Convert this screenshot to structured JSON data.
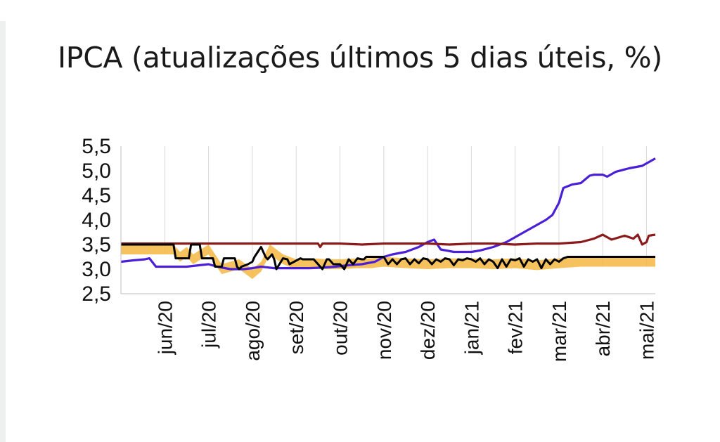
{
  "chart_data": {
    "type": "line",
    "title": "IPCA (atualizações últimos 5 dias úteis, %)",
    "xlabel": "",
    "ylabel": "",
    "y_ticks": [
      "5,5",
      "5,0",
      "4,5",
      "4,0",
      "3,5",
      "3,0",
      "2,5"
    ],
    "ylim": [
      2.5,
      5.5
    ],
    "x_ticks": [
      "jun/20",
      "jul/20",
      "ago/20",
      "set/20",
      "out/20",
      "nov/20",
      "dez/20",
      "jan/21",
      "fev/21",
      "mar/21",
      "abr/21",
      "mai/21"
    ],
    "x_tick_positions": [
      1,
      2,
      3,
      4,
      5,
      6,
      7,
      8,
      9,
      10,
      11,
      12
    ],
    "xlim": [
      0.0,
      12.2
    ],
    "grid": "vertical",
    "legend": "none",
    "series": [
      {
        "color": "#f5b742",
        "style": "area",
        "x": [
          0.0,
          1.2,
          1.35,
          1.5,
          1.65,
          2.0,
          2.3,
          2.7,
          3.0,
          3.2,
          3.4,
          3.7,
          4.0,
          4.4,
          4.7,
          5.0,
          5.4,
          5.7,
          6.0,
          6.5,
          7.0,
          7.5,
          8.0,
          8.5,
          9.0,
          9.5,
          10.0,
          10.5,
          11.0,
          11.5,
          12.2
        ],
        "values": [
          3.5,
          3.5,
          3.35,
          3.45,
          3.3,
          3.5,
          3.1,
          3.2,
          3.0,
          3.15,
          3.5,
          3.3,
          3.2,
          3.22,
          3.2,
          3.2,
          3.22,
          3.22,
          3.25,
          3.22,
          3.2,
          3.22,
          3.22,
          3.2,
          3.22,
          3.18,
          3.22,
          3.25,
          3.25,
          3.25,
          3.25
        ]
      },
      {
        "color": "#4a1fd6",
        "style": "line",
        "x": [
          0.0,
          0.3,
          0.55,
          0.65,
          0.8,
          1.0,
          1.3,
          1.5,
          1.8,
          2.0,
          2.2,
          2.5,
          2.8,
          3.0,
          3.2,
          3.5,
          3.8,
          4.0,
          4.3,
          4.6,
          4.9,
          5.2,
          5.5,
          5.8,
          6.0,
          6.2,
          6.5,
          6.8,
          7.0,
          7.15,
          7.3,
          7.6,
          7.9,
          8.0,
          8.2,
          8.5,
          8.8,
          9.0,
          9.2,
          9.5,
          9.7,
          9.85,
          10.0,
          10.1,
          10.3,
          10.5,
          10.7,
          10.8,
          11.0,
          11.1,
          11.3,
          11.6,
          11.9,
          12.2
        ],
        "values": [
          3.15,
          3.18,
          3.2,
          3.22,
          3.05,
          3.05,
          3.05,
          3.05,
          3.08,
          3.1,
          3.05,
          3.0,
          3.0,
          3.02,
          3.05,
          3.02,
          3.02,
          3.02,
          3.02,
          3.03,
          3.05,
          3.08,
          3.1,
          3.15,
          3.25,
          3.3,
          3.35,
          3.45,
          3.55,
          3.6,
          3.4,
          3.35,
          3.35,
          3.35,
          3.38,
          3.45,
          3.55,
          3.65,
          3.75,
          3.9,
          4.0,
          4.1,
          4.35,
          4.65,
          4.72,
          4.75,
          4.9,
          4.92,
          4.92,
          4.88,
          4.98,
          5.05,
          5.1,
          5.25
        ]
      },
      {
        "color": "#8b1a1a",
        "style": "line",
        "x": [
          0.0,
          1.0,
          2.0,
          3.0,
          4.0,
          4.5,
          4.55,
          4.6,
          5.0,
          5.5,
          6.0,
          7.0,
          7.5,
          8.0,
          8.5,
          9.0,
          9.5,
          10.0,
          10.5,
          10.8,
          11.0,
          11.2,
          11.5,
          11.7,
          11.8,
          11.9,
          12.0,
          12.05,
          12.2
        ],
        "values": [
          3.52,
          3.52,
          3.52,
          3.52,
          3.52,
          3.52,
          3.45,
          3.52,
          3.52,
          3.5,
          3.52,
          3.52,
          3.5,
          3.52,
          3.52,
          3.5,
          3.52,
          3.52,
          3.55,
          3.62,
          3.7,
          3.6,
          3.68,
          3.62,
          3.7,
          3.5,
          3.55,
          3.68,
          3.7
        ]
      },
      {
        "color": "#000000",
        "style": "line",
        "x": [
          0.0,
          1.1,
          1.2,
          1.25,
          1.55,
          1.6,
          1.65,
          1.8,
          1.85,
          2.1,
          2.15,
          2.3,
          2.35,
          2.6,
          2.65,
          2.7,
          2.75,
          2.9,
          3.0,
          3.05,
          3.2,
          3.3,
          3.35,
          3.45,
          3.5,
          3.55,
          3.7,
          3.8,
          3.85,
          4.1,
          4.15,
          4.3,
          4.4,
          4.6,
          4.7,
          4.75,
          4.85,
          5.0,
          5.1,
          5.2,
          5.3,
          5.4,
          5.5,
          5.55,
          5.6,
          5.8,
          6.0,
          6.1,
          6.2,
          6.3,
          6.4,
          6.5,
          6.6,
          6.7,
          6.8,
          6.9,
          7.0,
          7.1,
          7.2,
          7.3,
          7.4,
          7.5,
          7.6,
          7.7,
          7.8,
          7.9,
          8.0,
          8.1,
          8.2,
          8.3,
          8.4,
          8.5,
          8.6,
          8.7,
          8.8,
          8.9,
          9.0,
          9.1,
          9.2,
          9.3,
          9.4,
          9.5,
          9.6,
          9.7,
          9.8,
          9.9,
          10.0,
          10.1,
          10.2,
          10.3,
          10.5,
          11.0,
          11.5,
          12.2
        ],
        "values": [
          3.5,
          3.5,
          3.5,
          3.22,
          3.22,
          3.5,
          3.5,
          3.5,
          3.22,
          3.22,
          3.05,
          3.05,
          3.22,
          3.22,
          3.05,
          3.0,
          3.05,
          3.1,
          3.15,
          3.25,
          3.45,
          3.25,
          3.2,
          3.3,
          3.2,
          3.0,
          3.22,
          3.2,
          3.1,
          3.22,
          3.2,
          3.2,
          3.2,
          3.0,
          3.2,
          3.2,
          3.1,
          3.1,
          3.0,
          3.2,
          3.1,
          3.22,
          3.2,
          3.2,
          3.25,
          3.25,
          3.25,
          3.1,
          3.2,
          3.1,
          3.2,
          3.22,
          3.1,
          3.2,
          3.12,
          3.22,
          3.2,
          3.1,
          3.2,
          3.15,
          3.22,
          3.2,
          3.08,
          3.2,
          3.18,
          3.22,
          3.2,
          3.15,
          3.22,
          3.1,
          3.2,
          3.15,
          3.02,
          3.2,
          3.05,
          3.2,
          3.18,
          3.22,
          3.05,
          3.2,
          3.15,
          3.2,
          3.02,
          3.2,
          3.1,
          3.2,
          3.15,
          3.22,
          3.25,
          3.25,
          3.25,
          3.25,
          3.25,
          3.25
        ]
      }
    ]
  }
}
